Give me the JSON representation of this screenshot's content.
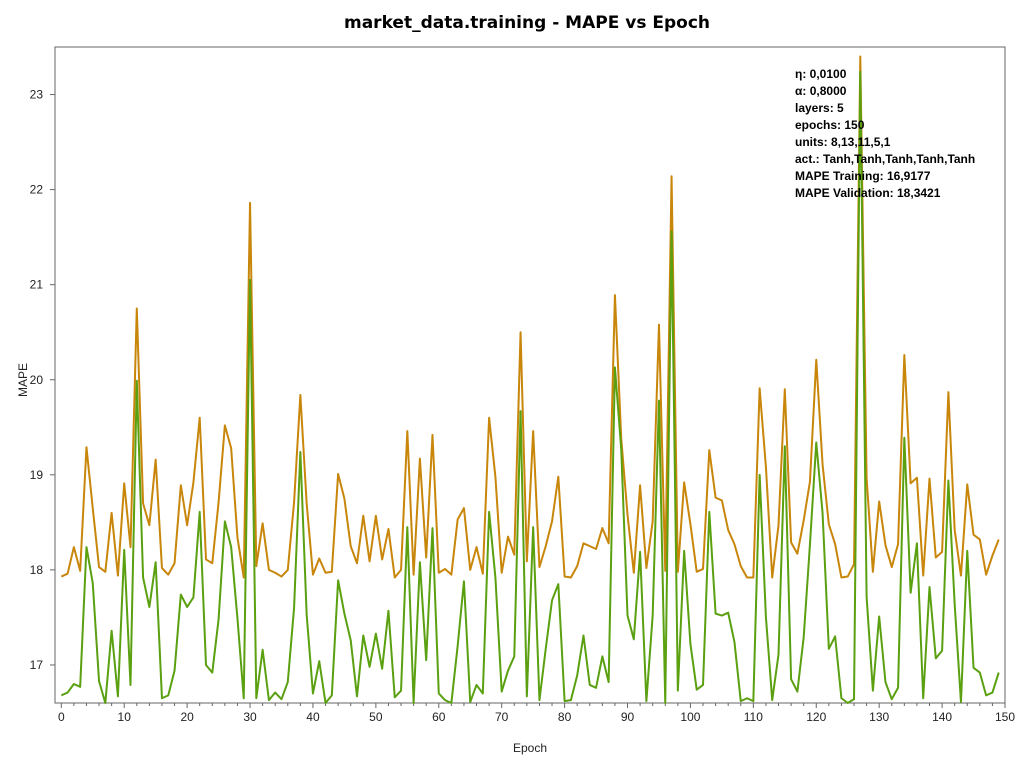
{
  "chart_data": {
    "type": "line",
    "title": "market_data.training - MAPE vs Epoch",
    "xlabel": "Epoch",
    "ylabel": "MAPE",
    "xlim": [
      -1,
      150
    ],
    "ylim": [
      16.6,
      23.5
    ],
    "xticks": [
      0,
      10,
      20,
      30,
      40,
      50,
      60,
      70,
      80,
      90,
      100,
      110,
      120,
      130,
      140,
      150
    ],
    "yticks": [
      17,
      18,
      19,
      20,
      21,
      22,
      23
    ],
    "grid": false,
    "legend": "none",
    "annotation": [
      "η: 0,0100",
      "α: 0,8000",
      "layers: 5",
      "epochs: 150",
      "units: 8,13,11,5,1",
      "act.: Tanh,Tanh,Tanh,Tanh,Tanh",
      "MAPE Training: 16,9177",
      "MAPE Validation: 18,3421"
    ],
    "series": [
      {
        "color": "#c8860a",
        "values": [
          17.93,
          17.96,
          18.24,
          17.99,
          19.29,
          18.65,
          18.03,
          17.98,
          18.6,
          17.94,
          18.91,
          18.24,
          20.75,
          18.7,
          18.47,
          19.16,
          18.02,
          17.95,
          18.07,
          18.89,
          18.47,
          18.92,
          19.6,
          18.11,
          18.07,
          18.71,
          19.52,
          19.28,
          18.34,
          17.92,
          21.86,
          18.04,
          18.49,
          18.0,
          17.97,
          17.93,
          18.0,
          18.71,
          19.84,
          18.7,
          17.95,
          18.12,
          17.97,
          17.98,
          19.01,
          18.75,
          18.25,
          18.07,
          18.57,
          18.09,
          18.57,
          18.11,
          18.43,
          17.92,
          18.0,
          19.46,
          17.95,
          19.17,
          18.13,
          19.42,
          17.97,
          18.01,
          17.95,
          18.53,
          18.65,
          18.0,
          18.24,
          17.96,
          19.6,
          18.98,
          17.97,
          18.35,
          18.16,
          20.5,
          18.09,
          19.46,
          18.03,
          18.25,
          18.51,
          18.98,
          17.93,
          17.92,
          18.04,
          18.28,
          18.25,
          18.22,
          18.44,
          18.28,
          20.89,
          19.38,
          18.58,
          17.97,
          18.89,
          18.02,
          18.51,
          20.58,
          17.99,
          22.14,
          17.98,
          18.92,
          18.48,
          17.98,
          18.01,
          19.26,
          18.76,
          18.73,
          18.42,
          18.27,
          18.04,
          17.92,
          17.92,
          19.91,
          19.08,
          17.92,
          18.47,
          19.9,
          18.29,
          18.17,
          18.52,
          18.93,
          20.21,
          19.11,
          18.48,
          18.27,
          17.92,
          17.93,
          18.06,
          23.4,
          18.97,
          17.98,
          18.72,
          18.26,
          18.03,
          18.27,
          20.26,
          18.91,
          18.97,
          17.94,
          18.96,
          18.13,
          18.19,
          19.87,
          18.42,
          17.94,
          18.9,
          18.37,
          18.32,
          17.95,
          18.15,
          18.32
        ]
      },
      {
        "color": "#5aa010",
        "values": [
          16.68,
          16.71,
          16.8,
          16.77,
          18.24,
          17.86,
          16.83,
          16.6,
          17.36,
          16.67,
          18.21,
          16.79,
          19.99,
          17.92,
          17.61,
          18.08,
          16.65,
          16.68,
          16.94,
          17.74,
          17.61,
          17.71,
          18.61,
          17.0,
          16.92,
          17.48,
          18.51,
          18.24,
          17.49,
          16.65,
          21.05,
          16.65,
          17.16,
          16.63,
          16.71,
          16.64,
          16.82,
          17.6,
          19.24,
          17.53,
          16.7,
          17.04,
          16.6,
          16.68,
          17.89,
          17.54,
          17.26,
          16.67,
          17.31,
          16.98,
          17.33,
          16.96,
          17.57,
          16.66,
          16.73,
          18.45,
          16.6,
          18.08,
          17.05,
          18.44,
          16.7,
          16.63,
          16.6,
          17.2,
          17.88,
          16.61,
          16.79,
          16.7,
          18.61,
          17.92,
          16.72,
          16.94,
          17.09,
          19.67,
          16.67,
          18.45,
          16.63,
          17.17,
          17.68,
          17.85,
          16.62,
          16.63,
          16.89,
          17.31,
          16.79,
          16.76,
          17.09,
          16.82,
          20.13,
          19.27,
          17.52,
          17.27,
          18.19,
          16.62,
          17.52,
          19.78,
          16.6,
          21.56,
          16.73,
          18.2,
          17.22,
          16.74,
          16.79,
          18.61,
          17.54,
          17.52,
          17.55,
          17.24,
          16.62,
          16.65,
          16.62,
          19.0,
          17.5,
          16.63,
          17.11,
          19.3,
          16.85,
          16.72,
          17.29,
          18.27,
          19.34,
          18.6,
          17.17,
          17.3,
          16.65,
          16.6,
          16.64,
          23.24,
          17.72,
          16.73,
          17.51,
          16.82,
          16.64,
          16.76,
          19.39,
          17.76,
          18.28,
          16.65,
          17.82,
          17.07,
          17.15,
          18.94,
          17.64,
          16.61,
          18.2,
          16.97,
          16.92,
          16.68,
          16.71,
          16.92
        ]
      }
    ]
  }
}
